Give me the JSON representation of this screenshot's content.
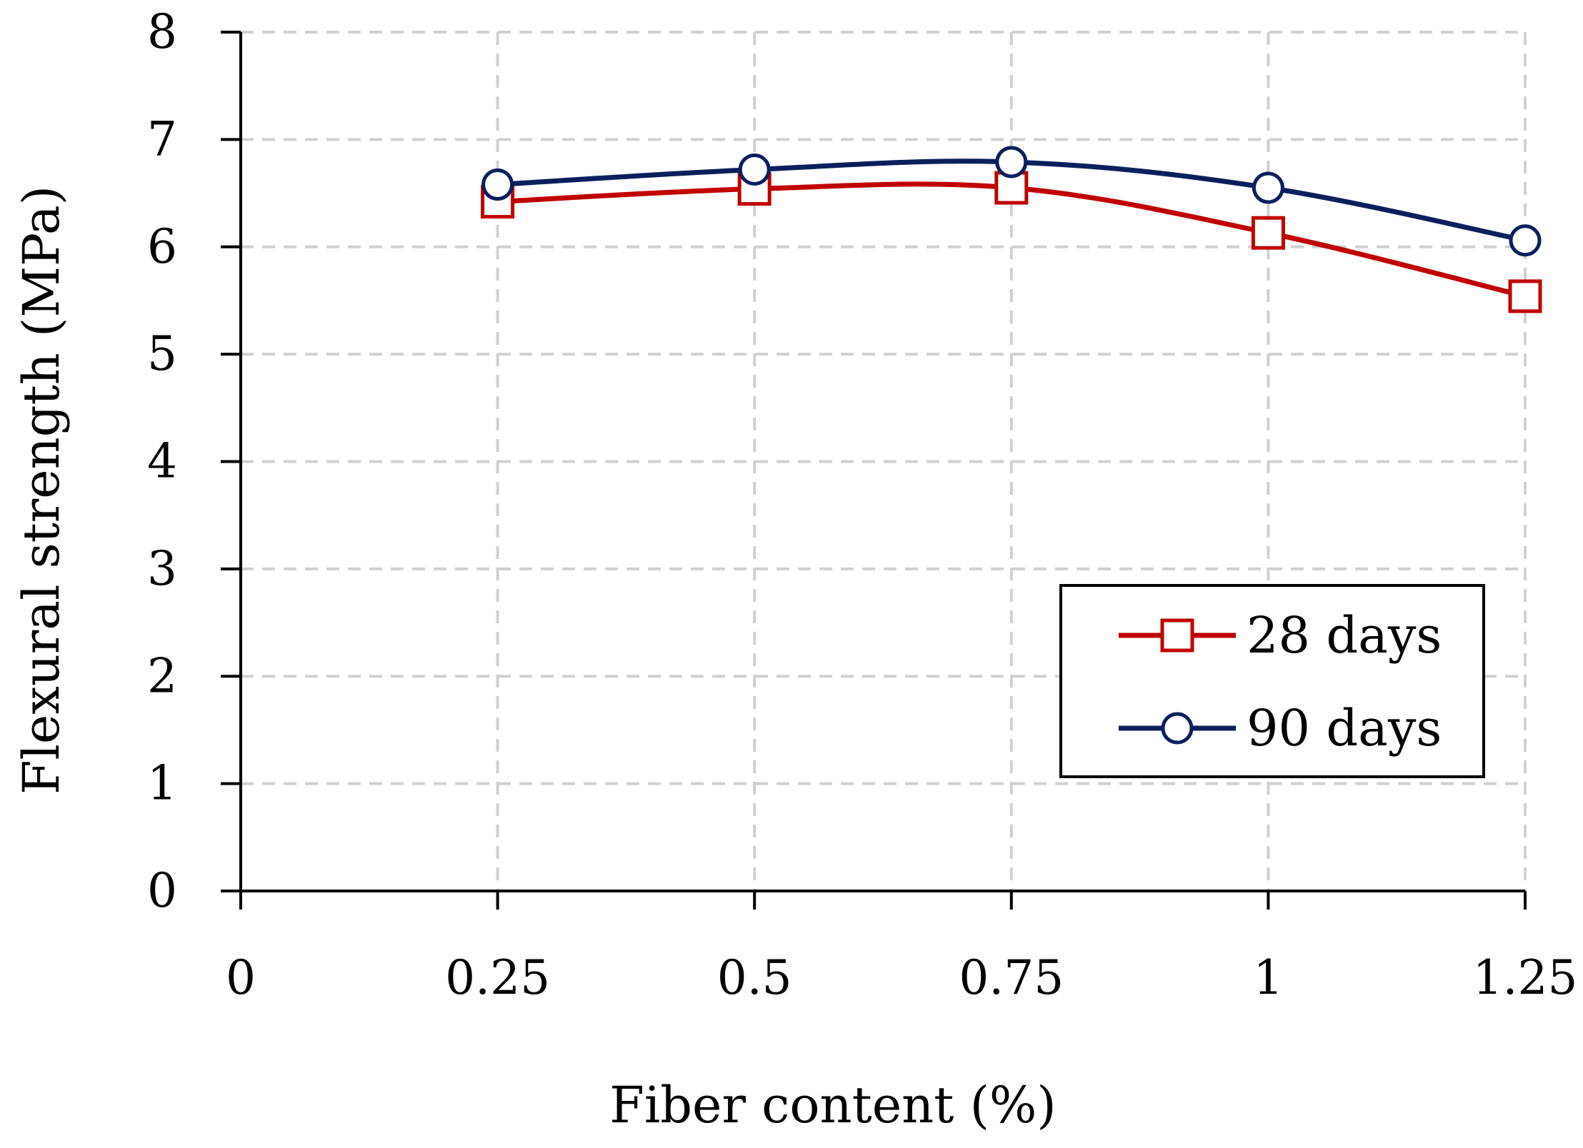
{
  "chart_data": {
    "type": "line",
    "title": "",
    "xlabel": "Fiber content (%)",
    "ylabel": "Flexural strength (MPa)",
    "x": [
      0.25,
      0.5,
      0.75,
      1,
      1.25
    ],
    "xlim": [
      0,
      1.25
    ],
    "ylim": [
      0,
      8
    ],
    "x_ticks": [
      0,
      0.25,
      0.5,
      0.75,
      1,
      1.25
    ],
    "x_tick_labels": [
      "0",
      "0.25",
      "0.5",
      "0.75",
      "1",
      "1.25"
    ],
    "y_ticks": [
      0,
      1,
      2,
      3,
      4,
      5,
      6,
      7,
      8
    ],
    "y_tick_labels": [
      "0",
      "1",
      "2",
      "3",
      "4",
      "5",
      "6",
      "7",
      "8"
    ],
    "grid": true,
    "legend_position": "bottom-right",
    "series": [
      {
        "name": "28 days",
        "values": [
          6.42,
          6.54,
          6.55,
          6.13,
          5.54
        ],
        "marker": "square",
        "color": "#c00000",
        "smooth": true
      },
      {
        "name": "90 days",
        "values": [
          6.58,
          6.72,
          6.79,
          6.55,
          6.06
        ],
        "marker": "circle",
        "color": "#0b1f5c",
        "smooth": true
      }
    ]
  }
}
